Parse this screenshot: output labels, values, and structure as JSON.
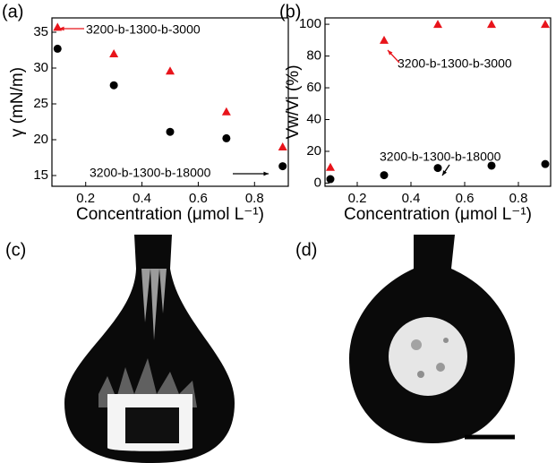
{
  "panels": [
    "(a)",
    "(b)",
    "(c)",
    "(d)"
  ],
  "chart_data": [
    {
      "type": "scatter",
      "xlabel": "Concentration (μmol L⁻¹)",
      "ylabel": "γ (mN/m)",
      "xlim": [
        0.08,
        0.92
      ],
      "xticks": [
        0.2,
        0.4,
        0.6,
        0.8
      ],
      "ylim": [
        13.5,
        37
      ],
      "yticks": [
        15,
        20,
        25,
        30,
        35
      ],
      "series": [
        {
          "color": "#e8141b",
          "marker": "triangle",
          "x": [
            0.1,
            0.3,
            0.5,
            0.7,
            0.9
          ],
          "values": [
            35.7,
            32.0,
            29.6,
            23.9,
            19.0
          ]
        },
        {
          "color": "#000000",
          "marker": "circle",
          "x": [
            0.1,
            0.3,
            0.5,
            0.7,
            0.9
          ],
          "values": [
            32.7,
            27.6,
            21.1,
            20.2,
            16.3
          ]
        }
      ],
      "annotations": [
        "3200-b-1300-b-3000",
        "3200-b-1300-b-18000"
      ]
    },
    {
      "type": "scatter",
      "xlabel": "Concentration (μmol L⁻¹)",
      "ylabel": "Vw/Vi (%)",
      "xlim": [
        0.08,
        0.92
      ],
      "xticks": [
        0.2,
        0.4,
        0.6,
        0.8
      ],
      "ylim": [
        -2,
        104
      ],
      "yticks": [
        0,
        20,
        40,
        60,
        80,
        100
      ],
      "series": [
        {
          "color": "#e8141b",
          "marker": "triangle",
          "x": [
            0.1,
            0.3,
            0.5,
            0.7,
            0.9
          ],
          "values": [
            10,
            90,
            100,
            100,
            100
          ]
        },
        {
          "color": "#000000",
          "marker": "circle",
          "x": [
            0.1,
            0.3,
            0.5,
            0.7,
            0.9
          ],
          "values": [
            2.5,
            5,
            9.5,
            11,
            12
          ]
        }
      ],
      "annotations": [
        "3200-b-1300-b-3000",
        "3200-b-1300-b-18000"
      ]
    }
  ]
}
